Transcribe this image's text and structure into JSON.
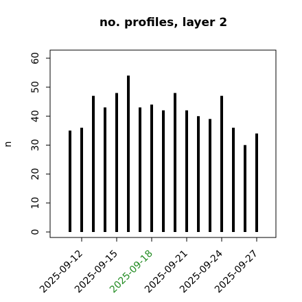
{
  "chart_data": {
    "type": "bar",
    "title": "no. profiles, layer 2",
    "y_label": "n",
    "categories": [
      null,
      "2025-09-12",
      null,
      null,
      "2025-09-15",
      null,
      null,
      "2025-09-18",
      null,
      null,
      "2025-09-21",
      null,
      null,
      "2025-09-24",
      null,
      null,
      "2025-09-27"
    ],
    "values": [
      35,
      36,
      47,
      43,
      48,
      54,
      43,
      44,
      42,
      48,
      42,
      40,
      39,
      47,
      36,
      30,
      34
    ],
    "color": "#000000",
    "highlight": {
      "index": 7,
      "color": "#228B22"
    },
    "ylim": [
      -1.9,
      62.8
    ],
    "yticks": [
      0,
      10,
      20,
      30,
      40,
      50,
      60
    ]
  }
}
